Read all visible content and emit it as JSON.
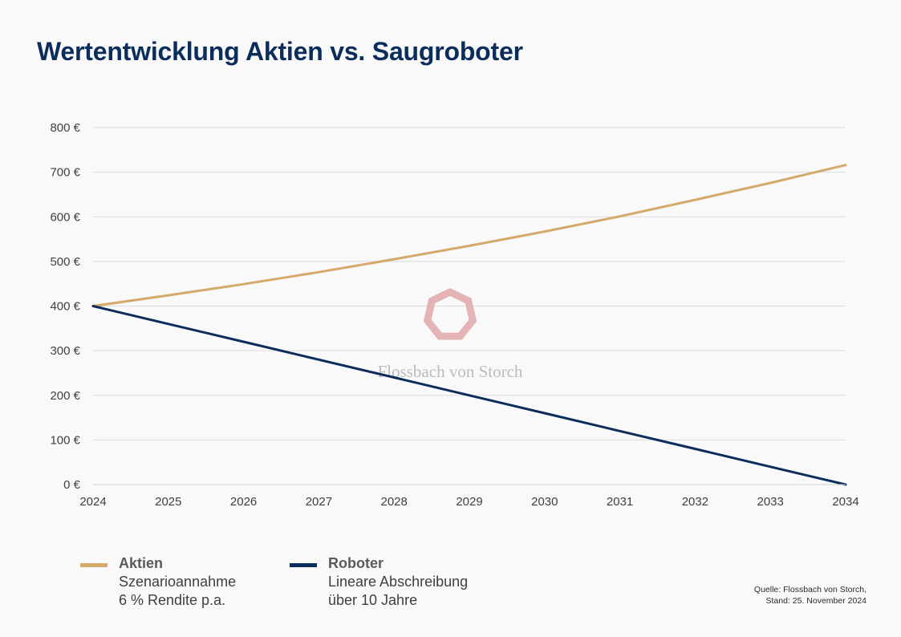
{
  "title": "Wertentwicklung Aktien vs. Saugroboter",
  "chart_data": {
    "type": "line",
    "x": [
      2024,
      2025,
      2026,
      2027,
      2028,
      2029,
      2030,
      2031,
      2032,
      2033,
      2034
    ],
    "series": [
      {
        "name": "Aktien",
        "color": "#d4a96a",
        "values": [
          400,
          424,
          449,
          476,
          505,
          535,
          567,
          601,
          638,
          676,
          716
        ]
      },
      {
        "name": "Roboter",
        "color": "#0b2d5c",
        "values": [
          400,
          360,
          320,
          280,
          240,
          200,
          160,
          120,
          80,
          40,
          0
        ]
      }
    ],
    "ylim": [
      0,
      800
    ],
    "yticks": [
      0,
      100,
      200,
      300,
      400,
      500,
      600,
      700,
      800
    ],
    "ytick_labels": [
      "0 €",
      "100 €",
      "200 €",
      "300 €",
      "400 €",
      "500 €",
      "600 €",
      "700 €",
      "800 €"
    ],
    "xtick_labels": [
      "2024",
      "2025",
      "2026",
      "2027",
      "2028",
      "2029",
      "2030",
      "2031",
      "2032",
      "2033",
      "2034"
    ],
    "grid": true,
    "legend_position": "bottom-left"
  },
  "legend": [
    {
      "name": "Aktien",
      "line1": "Szenarioannahme",
      "line2": "6 % Rendite p.a.",
      "color": "#d4a96a"
    },
    {
      "name": "Roboter",
      "line1": "Lineare Abschreibung",
      "line2": "über 10 Jahre",
      "color": "#0b2d5c"
    }
  ],
  "watermark": {
    "text": "Flossbach von Storch",
    "logo_color": "#e3b3b6"
  },
  "source": {
    "line1": "Quelle: Flossbach von Storch,",
    "line2": "Stand: 25. November 2024"
  }
}
